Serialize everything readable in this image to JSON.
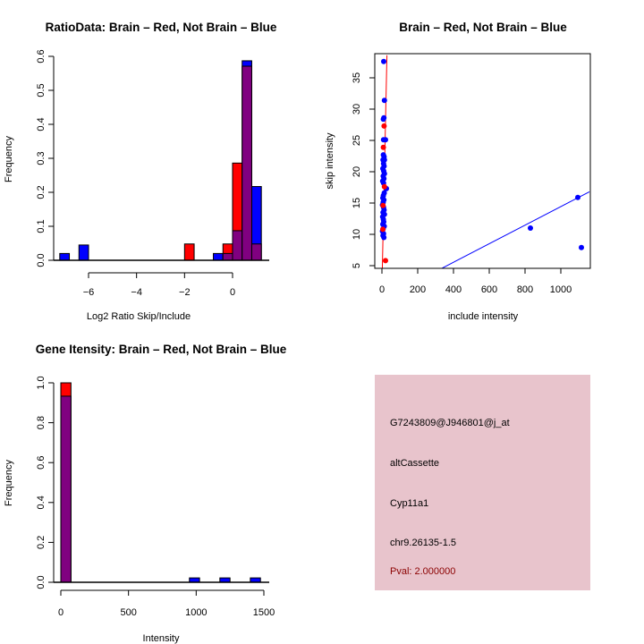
{
  "colors": {
    "brain": "#ff0000",
    "not_brain": "#0000ff",
    "overlap": "#800080",
    "info_bg": "#e8c4cc",
    "pval": "#8b0000"
  },
  "chart_data": [
    {
      "id": "ratio_hist",
      "type": "bar",
      "title": "RatioData: Brain – Red, Not Brain – Blue",
      "xlabel": "Log2 Ratio Skip/Include",
      "ylabel": "Frequency",
      "xlim": [
        -7.3,
        1.6
      ],
      "ylim": [
        0,
        0.6
      ],
      "xticks": [
        -6,
        -4,
        -2,
        0
      ],
      "xtick_labels": [
        "−6",
        "−4",
        "−2",
        "0"
      ],
      "yticks": [
        0.0,
        0.1,
        0.2,
        0.3,
        0.4,
        0.5,
        0.6
      ],
      "ytick_labels": [
        "0.0",
        "0.1",
        "0.2",
        "0.3",
        "0.4",
        "0.5",
        "0.6"
      ],
      "bin_width": 0.4,
      "series": [
        {
          "name": "Not Brain",
          "color": "#0000ff",
          "bins": [
            {
              "start": -7.2,
              "value": 0.02
            },
            {
              "start": -6.4,
              "value": 0.045
            },
            {
              "start": -0.8,
              "value": 0.02
            },
            {
              "start": -0.4,
              "value": 0.02
            },
            {
              "start": 0.0,
              "value": 0.087
            },
            {
              "start": 0.4,
              "value": 0.587
            },
            {
              "start": 0.8,
              "value": 0.217
            }
          ]
        },
        {
          "name": "Brain",
          "color": "#ff0000",
          "bins": [
            {
              "start": -2.0,
              "value": 0.048
            },
            {
              "start": -0.4,
              "value": 0.048
            },
            {
              "start": 0.0,
              "value": 0.286
            },
            {
              "start": 0.4,
              "value": 0.571
            },
            {
              "start": 0.8,
              "value": 0.048
            }
          ]
        }
      ],
      "overlap_color": "#800080"
    },
    {
      "id": "intensity_scatter",
      "type": "scatter",
      "title": "Brain – Red, Not Brain – Blue",
      "xlabel": "include intensity",
      "ylabel": "skip intensity",
      "xlim": [
        -40,
        1160
      ],
      "ylim": [
        4.3,
        38.6
      ],
      "xticks": [
        0,
        200,
        400,
        600,
        800,
        1000
      ],
      "xtick_labels": [
        "0",
        "200",
        "400",
        "600",
        "800",
        "1000"
      ],
      "yticks": [
        5,
        10,
        15,
        20,
        25,
        30,
        35
      ],
      "ytick_labels": [
        "5",
        "10",
        "15",
        "20",
        "25",
        "30",
        "35"
      ],
      "series": [
        {
          "name": "Not Brain",
          "color": "#0000ff",
          "points": [
            [
              10,
              37.6
            ],
            [
              14,
              31.4
            ],
            [
              8,
              28.4
            ],
            [
              11,
              28.6
            ],
            [
              9,
              25.1
            ],
            [
              20,
              25.1
            ],
            [
              8,
              22.7
            ],
            [
              12,
              22.4
            ],
            [
              6,
              21.9
            ],
            [
              14,
              21.9
            ],
            [
              9,
              21.3
            ],
            [
              12,
              20.9
            ],
            [
              5,
              20.5
            ],
            [
              10,
              20.1
            ],
            [
              14,
              19.7
            ],
            [
              7,
              19.3
            ],
            [
              11,
              18.9
            ],
            [
              4,
              18.5
            ],
            [
              9,
              18.2
            ],
            [
              25,
              17.3
            ],
            [
              13,
              16.6
            ],
            [
              8,
              16.2
            ],
            [
              5,
              15.8
            ],
            [
              11,
              15.5
            ],
            [
              7,
              15.1
            ],
            [
              3,
              14.7
            ],
            [
              9,
              14.3
            ],
            [
              12,
              13.9
            ],
            [
              6,
              13.5
            ],
            [
              14,
              13.2
            ],
            [
              4,
              12.8
            ],
            [
              8,
              12.4
            ],
            [
              10,
              12.0
            ],
            [
              5,
              11.6
            ],
            [
              13,
              11.3
            ],
            [
              7,
              10.9
            ],
            [
              3,
              10.5
            ],
            [
              9,
              10.1
            ],
            [
              6,
              9.8
            ],
            [
              11,
              9.5
            ],
            [
              830,
              11.0
            ],
            [
              1095,
              15.9
            ],
            [
              1115,
              7.9
            ]
          ]
        },
        {
          "name": "Brain",
          "color": "#ff0000",
          "points": [
            [
              12,
              27.3
            ],
            [
              8,
              23.9
            ],
            [
              14,
              17.6
            ],
            [
              6,
              14.6
            ],
            [
              5,
              10.8
            ],
            [
              20,
              5.8
            ]
          ]
        }
      ],
      "fit_lines": [
        {
          "name": "Not Brain fit",
          "color": "#0000ff",
          "from": [
            330,
            4.5
          ],
          "to": [
            1160,
            16.8
          ]
        },
        {
          "name": "Brain fit",
          "color": "#ff0000",
          "from": [
            2,
            4.3
          ],
          "to": [
            28,
            38.6
          ]
        }
      ]
    },
    {
      "id": "gene_hist",
      "type": "bar",
      "title": "Gene Itensity: Brain – Red, Not Brain – Blue",
      "xlabel": "Intensity",
      "ylabel": "Frequency",
      "xlim": [
        -40,
        1540
      ],
      "ylim": [
        0,
        1.0
      ],
      "xticks": [
        0,
        500,
        1000,
        1500
      ],
      "xtick_labels": [
        "0",
        "500",
        "1000",
        "1500"
      ],
      "yticks": [
        0.0,
        0.2,
        0.4,
        0.6,
        0.8,
        1.0
      ],
      "ytick_labels": [
        "0.0",
        "0.2",
        "0.4",
        "0.6",
        "0.8",
        "1.0"
      ],
      "bin_width": 75,
      "series": [
        {
          "name": "Not Brain",
          "color": "#0000ff",
          "bins": [
            {
              "start": 0,
              "value": 0.933
            },
            {
              "start": 950,
              "value": 0.022
            },
            {
              "start": 1175,
              "value": 0.022
            },
            {
              "start": 1400,
              "value": 0.022
            }
          ]
        },
        {
          "name": "Brain",
          "color": "#ff0000",
          "bins": [
            {
              "start": 0,
              "value": 1.0
            }
          ]
        }
      ],
      "overlap_color": "#800080"
    }
  ],
  "info_panel": {
    "probe_id": "G7243809@J946801@j_at",
    "event_type": "altCassette",
    "gene": "Cyp11a1",
    "location": "chr9.26135-1.5",
    "pval": "Pval: 2.000000"
  }
}
